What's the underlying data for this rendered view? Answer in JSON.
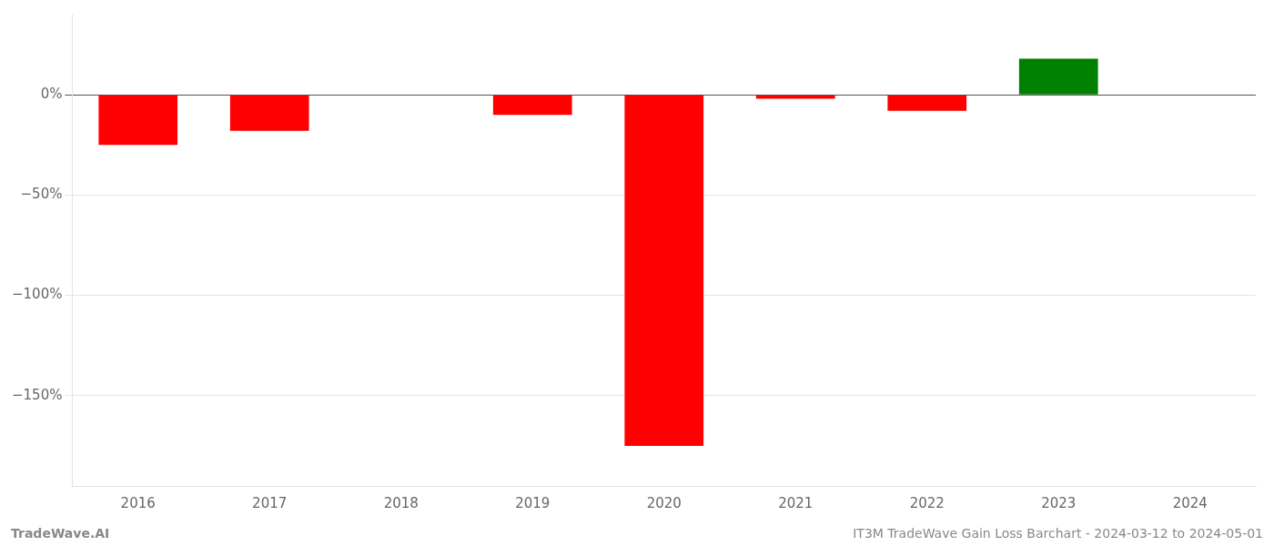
{
  "chart_data": {
    "type": "bar",
    "categories": [
      "2016",
      "2017",
      "2018",
      "2019",
      "2020",
      "2021",
      "2022",
      "2023",
      "2024"
    ],
    "values": [
      -25.0,
      -18.0,
      0.0,
      -10.0,
      -175.0,
      -2.0,
      -8.0,
      18.0,
      0.0
    ],
    "colors": [
      "red",
      "red",
      "none",
      "red",
      "red",
      "red",
      "red",
      "green",
      "none"
    ],
    "ylim": [
      -195,
      40
    ],
    "yticks": [
      {
        "value": 0,
        "label": "0%"
      },
      {
        "value": -50,
        "label": "−50%"
      },
      {
        "value": -100,
        "label": "−100%"
      },
      {
        "value": -150,
        "label": "−150%"
      }
    ],
    "grid": true,
    "annotations": [
      "TradeWave.AI",
      "IT3M TradeWave Gain Loss Barchart - 2024-03-12 to 2024-05-01"
    ]
  }
}
